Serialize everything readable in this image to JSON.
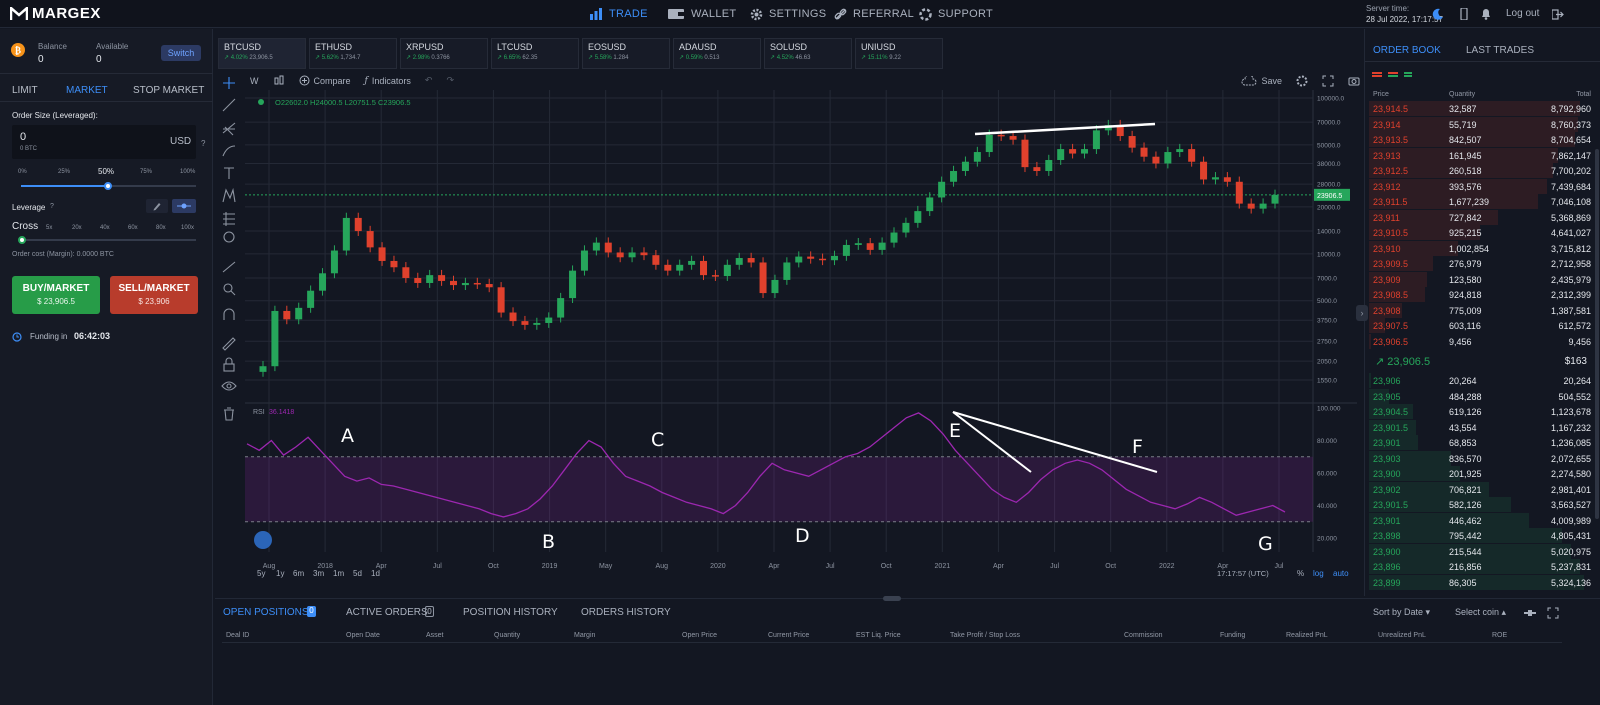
{
  "topbar": {
    "logo": "MARGEX",
    "nav": [
      {
        "label": "TRADE",
        "active": true
      },
      {
        "label": "WALLET",
        "active": false
      },
      {
        "label": "SETTINGS",
        "active": false
      },
      {
        "label": "REFERRAL",
        "active": false
      },
      {
        "label": "SUPPORT",
        "active": false
      }
    ],
    "server_label": "Server time:",
    "server_time": "28 Jul 2022, 17:17:57",
    "logout": "Log out"
  },
  "left": {
    "balance_label": "Balance",
    "balance": "0",
    "available_label": "Available",
    "available": "0",
    "switch": "Switch",
    "tabs": [
      "LIMIT",
      "MARKET",
      "STOP MARKET"
    ],
    "active_tab": "MARKET",
    "order_size_label": "Order Size (Leveraged):",
    "order_value": "0",
    "order_btc": "0 BTC",
    "order_unit": "USD",
    "pct_marks": [
      "0%",
      "25%",
      "50%",
      "75%",
      "100%"
    ],
    "pct_selected": "50%",
    "pct_value": 0.5,
    "leverage_label": "Leverage",
    "cross": "Cross",
    "lev_marks": [
      "5x",
      "20x",
      "40x",
      "60x",
      "80x",
      "100x"
    ],
    "order_cost": "Order cost (Margin): 0.0000 BTC",
    "buy_label": "BUY/MARKET",
    "buy_price": "$ 23,906.5",
    "sell_label": "SELL/MARKET",
    "sell_price": "$ 23,906",
    "funding_label": "Funding in",
    "funding_time": "06:42:03"
  },
  "tickers": [
    {
      "name": "BTCUSD",
      "chg": "4.02%",
      "price": "23,906.5"
    },
    {
      "name": "ETHUSD",
      "chg": "5.62%",
      "price": "1,734.7"
    },
    {
      "name": "XRPUSD",
      "chg": "2.98%",
      "price": "0.3766"
    },
    {
      "name": "LTCUSD",
      "chg": "6.65%",
      "price": "62.35"
    },
    {
      "name": "EOSUSD",
      "chg": "5.58%",
      "price": "1.284"
    },
    {
      "name": "ADAUSD",
      "chg": "0.59%",
      "price": "0.513"
    },
    {
      "name": "SOLUSD",
      "chg": "4.52%",
      "price": "46.63"
    },
    {
      "name": "UNIUSD",
      "chg": "15.11%",
      "price": "9.22"
    }
  ],
  "toolbar": {
    "interval": "W",
    "compare": "Compare",
    "indicators": "Indicators",
    "save": "Save"
  },
  "chart_data": {
    "type": "line",
    "ohlc_legend": "O22602.0 H24000.5 L20751.5 C23906.5",
    "price_axis": [
      "100000.0",
      "70000.0",
      "50000.0",
      "38000.0",
      "28000.0",
      "20000.0",
      "14000.0",
      "10000.0",
      "7000.0",
      "5000.0",
      "3750.0",
      "2750.0",
      "2050.0",
      "1550.0"
    ],
    "last_price": "23906.5",
    "x_ticks": [
      "Aug",
      "2018",
      "Apr",
      "Jul",
      "Oct",
      "2019",
      "May",
      "Aug",
      "2020",
      "Apr",
      "Jul",
      "Oct",
      "2021",
      "Apr",
      "Jul",
      "Oct",
      "2022",
      "Apr",
      "Jul"
    ],
    "price_series": [
      1900,
      4300,
      3800,
      4500,
      5800,
      7500,
      10500,
      17000,
      14000,
      11000,
      9000,
      8200,
      7000,
      6500,
      7300,
      6700,
      6300,
      6500,
      6400,
      6100,
      4200,
      3700,
      3500,
      3600,
      3900,
      5200,
      7800,
      10500,
      11800,
      10200,
      9500,
      10200,
      9800,
      8500,
      7800,
      8500,
      9000,
      7300,
      7200,
      8500,
      9400,
      8800,
      5600,
      6800,
      8800,
      9600,
      9300,
      9100,
      9700,
      11400,
      11700,
      10600,
      11800,
      13700,
      15800,
      18800,
      23000,
      29000,
      34000,
      39000,
      45000,
      58000,
      57000,
      54000,
      36000,
      34000,
      40000,
      47000,
      44000,
      47000,
      62000,
      67000,
      57000,
      48000,
      42000,
      38000,
      45000,
      47000,
      39000,
      30000,
      31000,
      29000,
      21000,
      19500,
      21000,
      23900
    ],
    "rsi_label": "RSI",
    "rsi_value": "36.1418",
    "rsi_axis": [
      "100.000",
      "80.000",
      "60.000",
      "40.000",
      "20.000"
    ],
    "rsi_series": [
      78,
      74,
      80,
      71,
      76,
      82,
      74,
      66,
      58,
      55,
      57,
      53,
      52,
      50,
      48,
      46,
      44,
      42,
      40,
      38,
      35,
      33,
      35,
      38,
      44,
      52,
      62,
      72,
      80,
      76,
      66,
      58,
      55,
      52,
      48,
      45,
      42,
      40,
      38,
      35,
      40,
      48,
      58,
      66,
      62,
      60,
      58,
      62,
      66,
      70,
      72,
      76,
      82,
      88,
      94,
      97,
      92,
      84,
      74,
      66,
      58,
      50,
      45,
      42,
      48,
      56,
      62,
      66,
      68,
      66,
      62,
      56,
      50,
      46,
      42,
      40,
      38,
      41,
      45,
      42,
      38,
      34,
      36,
      38,
      40,
      36
    ],
    "annotations": [
      "A",
      "B",
      "C",
      "D",
      "E",
      "F",
      "G"
    ],
    "time_display": "17:17:57 (UTC)",
    "scale_opts": [
      "%",
      "log",
      "auto"
    ],
    "ranges": [
      "5y",
      "1y",
      "6m",
      "3m",
      "1m",
      "5d",
      "1d"
    ]
  },
  "orderbook": {
    "tabs": [
      "ORDER BOOK",
      "LAST TRADES"
    ],
    "headers": [
      "Price",
      "Quantity",
      "Total"
    ],
    "asks": [
      [
        "23,914.5",
        "32,587",
        "8,792,960",
        0.95
      ],
      [
        "23,914",
        "55,719",
        "8,760,373",
        0.94
      ],
      [
        "23,913.5",
        "842,507",
        "8,704,654",
        0.93
      ],
      [
        "23,913",
        "161,945",
        "7,862,147",
        0.85
      ],
      [
        "23,912.5",
        "260,518",
        "7,700,202",
        0.83
      ],
      [
        "23,912",
        "393,576",
        "7,439,684",
        0.8
      ],
      [
        "23,911.5",
        "1,677,239",
        "7,046,108",
        0.76
      ],
      [
        "23,911",
        "727,842",
        "5,368,869",
        0.58
      ],
      [
        "23,910.5",
        "925,215",
        "4,641,027",
        0.5
      ],
      [
        "23,910",
        "1,002,854",
        "3,715,812",
        0.4
      ],
      [
        "23,909.5",
        "276,979",
        "2,712,958",
        0.29
      ],
      [
        "23,909",
        "123,580",
        "2,435,979",
        0.26
      ],
      [
        "23,908.5",
        "924,818",
        "2,312,399",
        0.25
      ],
      [
        "23,908",
        "775,009",
        "1,387,581",
        0.15
      ],
      [
        "23,907.5",
        "603,116",
        "612,572",
        0.07
      ],
      [
        "23,906.5",
        "9,456",
        "9,456",
        0.01
      ]
    ],
    "mid_price": "23,906.5",
    "mid_value": "$163",
    "bids": [
      [
        "23,906",
        "20,264",
        "20,264",
        0.01
      ],
      [
        "23,905",
        "484,288",
        "504,552",
        0.09
      ],
      [
        "23,904.5",
        "619,126",
        "1,123,678",
        0.2
      ],
      [
        "23,901.5",
        "43,554",
        "1,167,232",
        0.21
      ],
      [
        "23,901",
        "68,853",
        "1,236,085",
        0.22
      ],
      [
        "23,903",
        "836,570",
        "2,072,655",
        0.37
      ],
      [
        "23,900",
        "201,925",
        "2,274,580",
        0.41
      ],
      [
        "23,902",
        "706,821",
        "2,981,401",
        0.54
      ],
      [
        "23,901.5",
        "582,126",
        "3,563,527",
        0.64
      ],
      [
        "23,901",
        "446,462",
        "4,009,989",
        0.72
      ],
      [
        "23,898",
        "795,442",
        "4,805,431",
        0.87
      ],
      [
        "23,900",
        "215,544",
        "5,020,975",
        0.91
      ],
      [
        "23,896",
        "216,856",
        "5,237,831",
        0.95
      ],
      [
        "23,899",
        "86,305",
        "5,324,136",
        0.97
      ]
    ]
  },
  "bottom": {
    "tabs": [
      "OPEN POSITIONS",
      "ACTIVE ORDERS",
      "POSITION HISTORY",
      "ORDERS HISTORY"
    ],
    "open_count": "0",
    "active_count": "0",
    "sort": "Sort by Date",
    "select_coin": "Select coin",
    "columns": [
      "Deal ID",
      "Open Date",
      "Asset",
      "Quantity",
      "Margin",
      "Open Price",
      "Current Price",
      "EST Liq. Price",
      "Take Profit / Stop Loss",
      "Commission",
      "Funding",
      "Realized PnL",
      "Unrealized PnL",
      "ROE"
    ]
  },
  "colors": {
    "up": "#26a65b",
    "down": "#e0412d",
    "accent": "#3d8ef7",
    "rsi": "#9c27b0"
  }
}
